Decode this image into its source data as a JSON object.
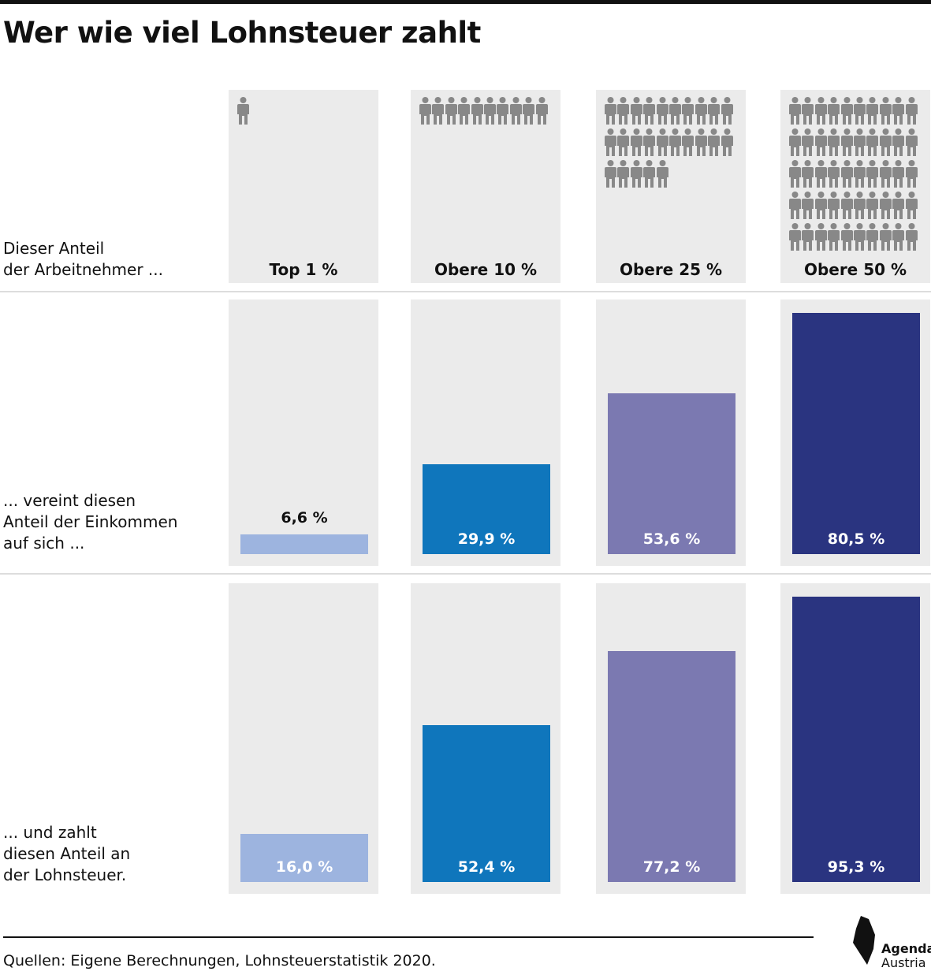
{
  "title": "Wer wie viel Lohnsteuer zahlt",
  "row_labels": {
    "workers": "Dieser Anteil\nder Arbeitnehmer ...",
    "income": "... vereint diesen\nAnteil der Einkommen\nauf sich  ...",
    "tax": "... und zahlt\ndiesen Anteil an\nder Lohnsteuer."
  },
  "source": "Quellen: Eigene Berechnungen, Lohnsteuerstatistik 2020.",
  "logo": {
    "line1": "Agenda",
    "line2": "Austria"
  },
  "colors": {
    "panel": "#ebebeb",
    "person_icon": "#888888",
    "groups": [
      "#9db4df",
      "#0f76bc",
      "#7b79b1",
      "#2a3480"
    ]
  },
  "chart_data": {
    "type": "bar",
    "categories": [
      "Top 1 %",
      "Obere 10 %",
      "Obere 25 %",
      "Obere 50 %"
    ],
    "people_icons": [
      1,
      10,
      25,
      50
    ],
    "ylim": [
      0,
      100
    ],
    "series": [
      {
        "values": [
          6.6,
          29.9,
          53.6,
          80.5
        ],
        "labels": [
          "6,6 %",
          "29,9 %",
          "53,6 %",
          "80,5 %"
        ]
      },
      {
        "values": [
          16.0,
          52.4,
          77.2,
          95.3
        ],
        "labels": [
          "16,0 %",
          "52,4 %",
          "77,2 %",
          "95,3 %"
        ]
      }
    ]
  }
}
